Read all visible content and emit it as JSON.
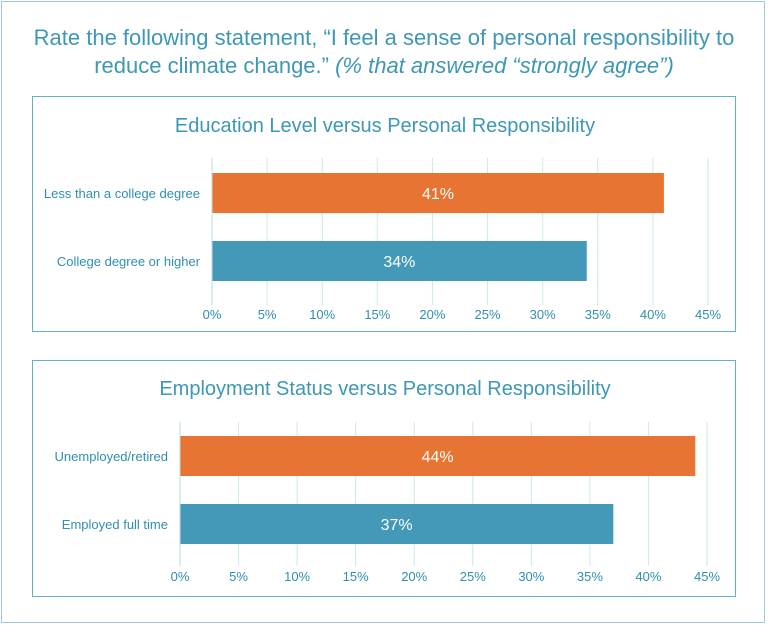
{
  "title": {
    "main": "Rate the following statement, “I feel a sense of personal responsibility to reduce climate change.”",
    "sub": "(% that answered “strongly agree”)"
  },
  "colors": {
    "accent": "#3e97b4",
    "orange": "#e87434",
    "teal": "#4499b9",
    "grid": "#cfe6ee"
  },
  "chart_data": [
    {
      "type": "bar",
      "orientation": "horizontal",
      "title": "Education Level versus Personal Responsibility",
      "categories": [
        "Less than a college degree",
        "College degree or higher"
      ],
      "values": [
        41,
        34
      ],
      "value_labels": [
        "41%",
        "34%"
      ],
      "bar_colors": [
        "#e87434",
        "#4499b9"
      ],
      "xlim": [
        0,
        45
      ],
      "xticks": [
        "0%",
        "5%",
        "10%",
        "15%",
        "20%",
        "25%",
        "30%",
        "35%",
        "40%",
        "45%"
      ],
      "grid": true
    },
    {
      "type": "bar",
      "orientation": "horizontal",
      "title": "Employment Status versus Personal Responsibility",
      "categories": [
        "Unemployed/retired",
        "Employed full time"
      ],
      "values": [
        44,
        37
      ],
      "value_labels": [
        "44%",
        "37%"
      ],
      "bar_colors": [
        "#e87434",
        "#4499b9"
      ],
      "xlim": [
        0,
        45
      ],
      "xticks": [
        "0%",
        "5%",
        "10%",
        "15%",
        "20%",
        "25%",
        "30%",
        "35%",
        "40%",
        "45%"
      ],
      "grid": true
    }
  ]
}
